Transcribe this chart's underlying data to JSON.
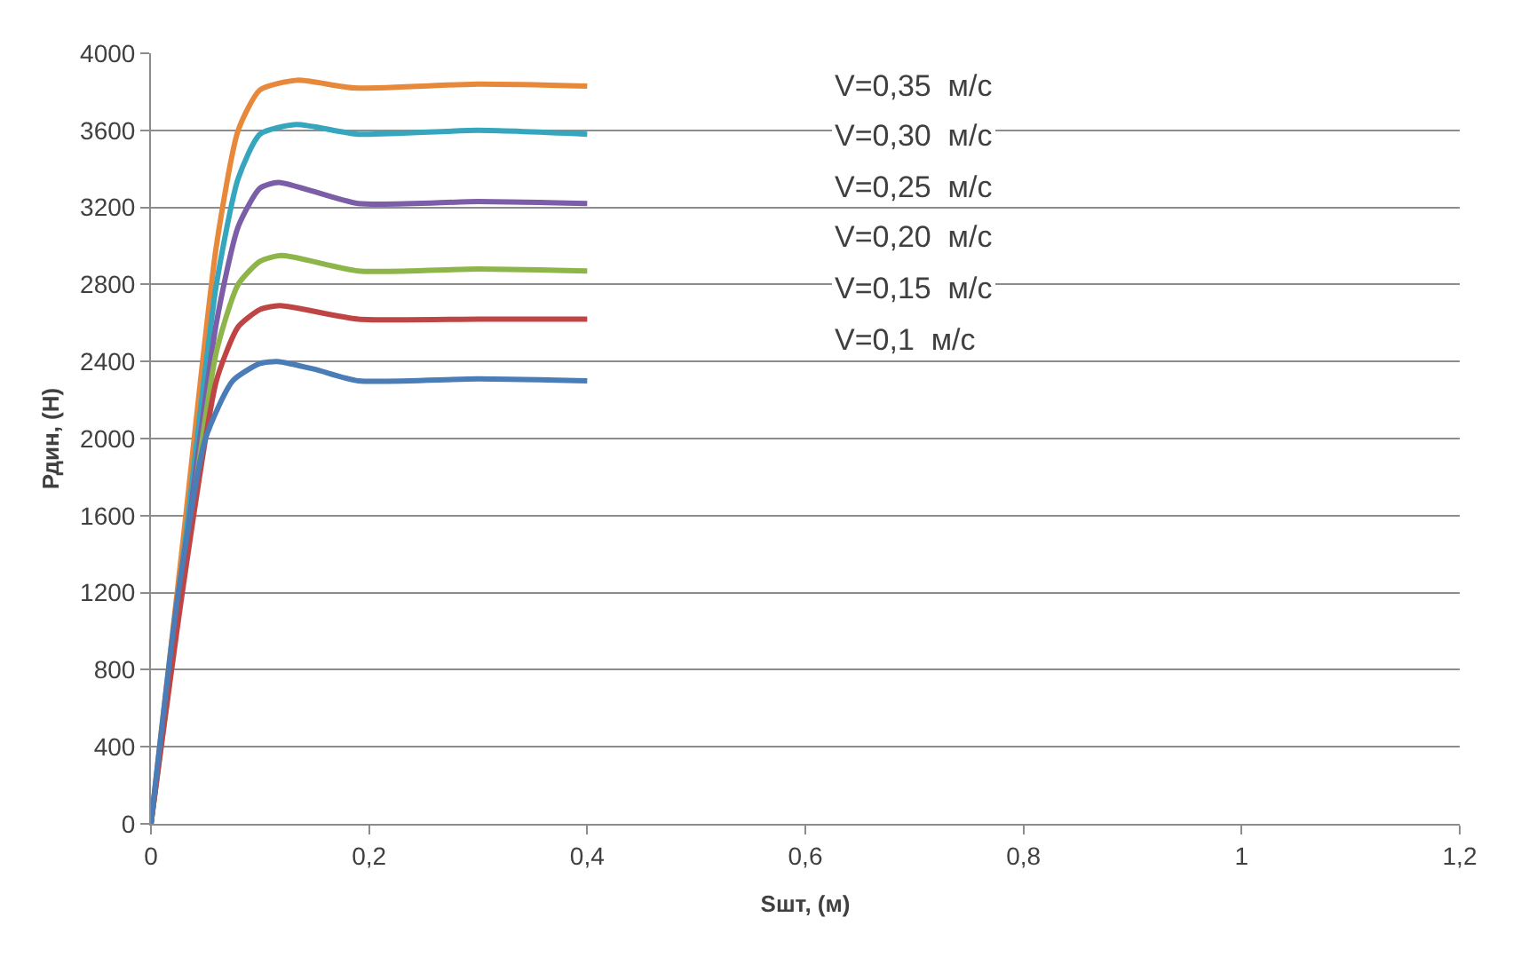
{
  "chart_data": {
    "type": "line",
    "xlabel": "Sшт, (м)",
    "ylabel": "Рдин, (Н)",
    "xlim": [
      0,
      1.2
    ],
    "xticks": [
      0,
      {
        "value": 0.2,
        "label": "0,2"
      },
      {
        "value": 0.4,
        "label": "0,4"
      },
      {
        "value": 0.6,
        "label": "0,6"
      },
      {
        "value": 0.8,
        "label": "0,8"
      },
      1,
      {
        "value": 1.2,
        "label": "1,2"
      }
    ],
    "ylim": [
      0,
      4000
    ],
    "yticks": [
      0,
      400,
      800,
      1200,
      1600,
      2000,
      2400,
      2800,
      3200,
      3600,
      4000
    ],
    "grid": "y",
    "marker": "none",
    "line_style": "solid",
    "annotations": [
      "V=0,35  м/с",
      "V=0,30  м/с",
      "V=0,25  м/с",
      "V=0,20  м/с",
      "V=0,15  м/с",
      "V=0,1  м/с"
    ],
    "series": [
      {
        "color": "#e8883a",
        "x": [
          0,
          0.03,
          0.06,
          0.08,
          0.1,
          0.134,
          0.186,
          0.3,
          0.4
        ],
        "values": [
          0,
          1500,
          3000,
          3600,
          3810,
          3860,
          3820,
          3840,
          3830
        ]
      },
      {
        "color": "#35a6bd",
        "x": [
          0,
          0.03,
          0.06,
          0.08,
          0.1,
          0.133,
          0.19,
          0.3,
          0.4
        ],
        "values": [
          0,
          1400,
          2800,
          3350,
          3580,
          3630,
          3580,
          3600,
          3580
        ]
      },
      {
        "color": "#7b5ea7",
        "x": [
          0,
          0.03,
          0.06,
          0.08,
          0.1,
          0.117,
          0.19,
          0.3,
          0.4
        ],
        "values": [
          0,
          1350,
          2600,
          3100,
          3300,
          3330,
          3220,
          3230,
          3220
        ]
      },
      {
        "color": "#8db54a",
        "x": [
          0,
          0.03,
          0.06,
          0.08,
          0.1,
          0.12,
          0.19,
          0.3,
          0.4
        ],
        "values": [
          0,
          1300,
          2450,
          2800,
          2920,
          2950,
          2870,
          2880,
          2870
        ]
      },
      {
        "color": "#bf4545",
        "x": [
          0,
          0.03,
          0.06,
          0.08,
          0.1,
          0.118,
          0.19,
          0.3,
          0.4
        ],
        "values": [
          0,
          1250,
          2300,
          2580,
          2670,
          2690,
          2620,
          2620,
          2620
        ]
      },
      {
        "color": "#4a7cb8",
        "x": [
          0,
          0.025,
          0.05,
          0.075,
          0.1,
          0.116,
          0.15,
          0.19,
          0.3,
          0.4
        ],
        "values": [
          0,
          1200,
          2000,
          2300,
          2390,
          2400,
          2360,
          2300,
          2310,
          2300
        ]
      }
    ]
  }
}
